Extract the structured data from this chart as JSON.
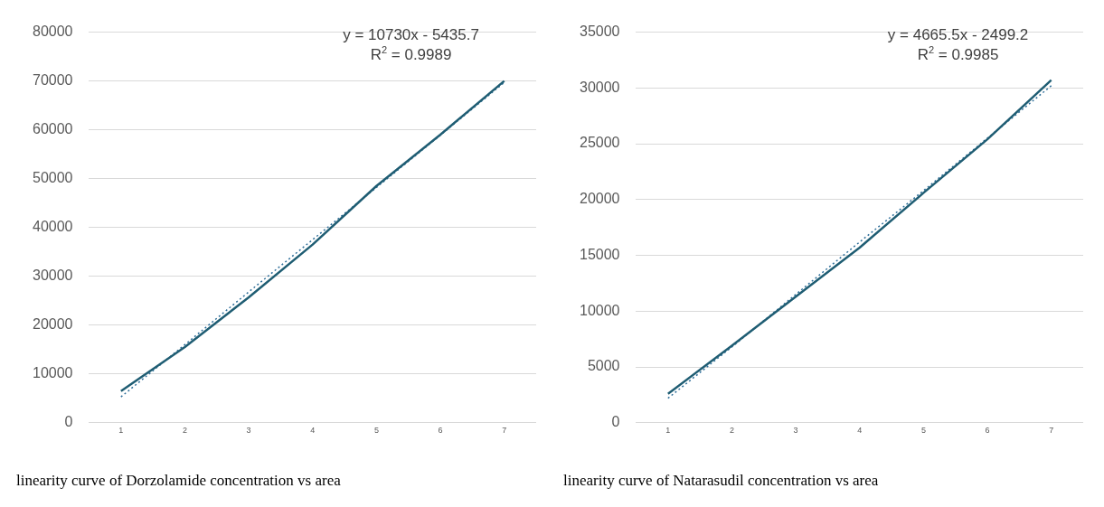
{
  "chart_data": [
    {
      "type": "line",
      "title": "linearity curve of Dorzolamide concentration vs area",
      "x": [
        1,
        2,
        3,
        4,
        5,
        6,
        7
      ],
      "xlim": [
        0.5,
        7.5
      ],
      "xticks": [
        1,
        2,
        3,
        4,
        5,
        6,
        7
      ],
      "ylim": [
        0,
        80000
      ],
      "yticks": [
        0,
        10000,
        20000,
        30000,
        40000,
        50000,
        60000,
        70000,
        80000
      ],
      "grid": "y",
      "marker": "none",
      "annotations": [
        "y = 10730x - 5435.7",
        "R$^{2}$ = 0.9989"
      ],
      "series": [
        {
          "color": "#1f5d73",
          "line_style": "solid",
          "values": [
            6500,
            15500,
            25700,
            36500,
            48500,
            59000,
            70000
          ]
        },
        {
          "color": "#2e6e99",
          "line_style": "dotted",
          "values": [
            5300,
            16000,
            26800,
            37500,
            48200,
            58900,
            69700
          ]
        }
      ]
    },
    {
      "type": "line",
      "title": "linearity curve of Natarasudil concentration vs area",
      "x": [
        1,
        2,
        3,
        4,
        5,
        6,
        7
      ],
      "xlim": [
        0.5,
        7.5
      ],
      "xticks": [
        1,
        2,
        3,
        4,
        5,
        6,
        7
      ],
      "ylim": [
        0,
        35000
      ],
      "yticks": [
        0,
        5000,
        10000,
        15000,
        20000,
        25000,
        30000,
        35000
      ],
      "grid": "y",
      "marker": "none",
      "annotations": [
        "y = 4665.5x - 2499.2",
        "R$^{2}$ = 0.9985"
      ],
      "series": [
        {
          "color": "#1f5d73",
          "line_style": "solid",
          "values": [
            2600,
            6900,
            11300,
            15700,
            20600,
            25400,
            30700
          ]
        },
        {
          "color": "#2e6e99",
          "line_style": "dotted",
          "values": [
            2200,
            6800,
            11500,
            16200,
            20800,
            25500,
            30200
          ]
        }
      ]
    }
  ]
}
